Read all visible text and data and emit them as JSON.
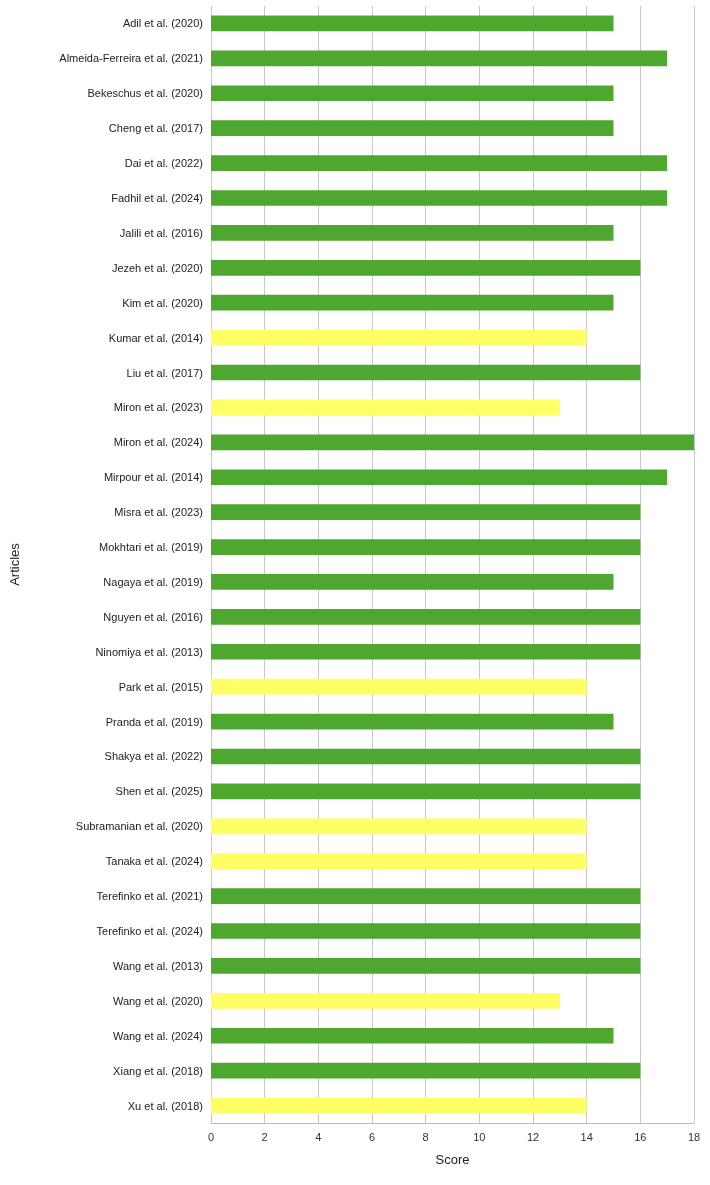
{
  "chart_data": {
    "type": "bar",
    "orientation": "horizontal",
    "xlabel": "Score",
    "ylabel": "Articles",
    "categories": [
      "Adil et al. (2020)",
      "Almeida-Ferreira et al. (2021)",
      "Bekeschus et al. (2020)",
      "Cheng et al. (2017)",
      "Dai et al. (2022)",
      "Fadhil et al. (2024)",
      "Jalili et al. (2016)",
      "Jezeh et al. (2020)",
      "Kim et al. (2020)",
      "Kumar et al. (2014)",
      "Liu et al. (2017)",
      "Miron et al. (2023)",
      "Miron et al. (2024)",
      "Mirpour et al. (2014)",
      "Misra et al. (2023)",
      "Mokhtari et al. (2019)",
      "Nagaya et al. (2019)",
      "Nguyen et al. (2016)",
      "Ninomiya et al. (2013)",
      "Park et al. (2015)",
      "Pranda et al. (2019)",
      "Shakya et al. (2022)",
      "Shen et al. (2025)",
      "Subramanian et al. (2020)",
      "Tanaka et al. (2024)",
      "Terefinko et al. (2021)",
      "Terefinko et al. (2024)",
      "Wang et al. (2013)",
      "Wang et al. (2020)",
      "Wang et al. (2024)",
      "Xiang et al. (2018)",
      "Xu et al. (2018)"
    ],
    "values": [
      15,
      17,
      15,
      15,
      17,
      17,
      15,
      16,
      15,
      14,
      16,
      13,
      18,
      17,
      16,
      16,
      15,
      16,
      16,
      14,
      15,
      16,
      16,
      14,
      14,
      16,
      16,
      16,
      13,
      15,
      16,
      14
    ],
    "colors": [
      "#4ea72e",
      "#4ea72e",
      "#4ea72e",
      "#4ea72e",
      "#4ea72e",
      "#4ea72e",
      "#4ea72e",
      "#4ea72e",
      "#4ea72e",
      "#ffff66",
      "#4ea72e",
      "#ffff66",
      "#4ea72e",
      "#4ea72e",
      "#4ea72e",
      "#4ea72e",
      "#4ea72e",
      "#4ea72e",
      "#4ea72e",
      "#ffff66",
      "#4ea72e",
      "#4ea72e",
      "#4ea72e",
      "#ffff66",
      "#ffff66",
      "#4ea72e",
      "#4ea72e",
      "#4ea72e",
      "#ffff66",
      "#4ea72e",
      "#4ea72e",
      "#ffff66"
    ],
    "xlim": [
      0,
      18
    ],
    "xticks": [
      0,
      2,
      4,
      6,
      8,
      10,
      12,
      14,
      16,
      18
    ],
    "grid": "x"
  }
}
